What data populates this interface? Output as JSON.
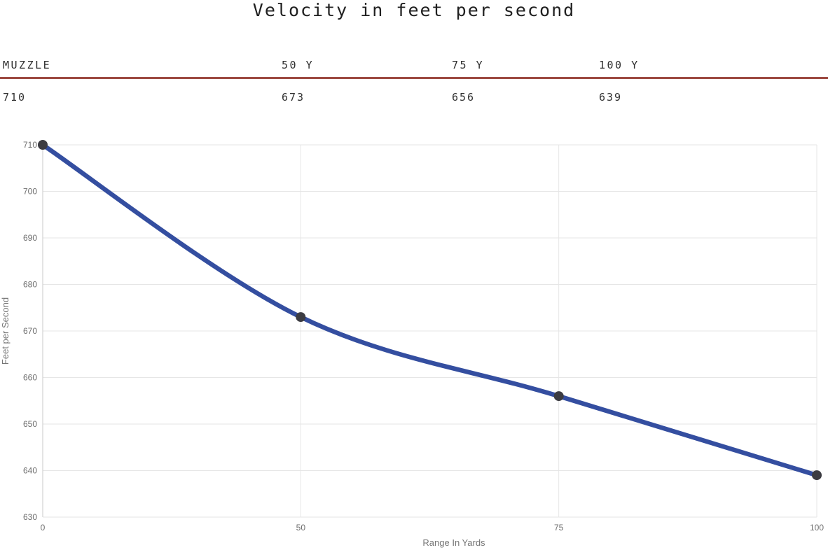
{
  "title": "Velocity in feet per second",
  "table": {
    "headers": [
      "MUZZLE",
      "50 Y",
      "75 Y",
      "100 Y"
    ],
    "values": [
      "710",
      "673",
      "656",
      "639"
    ],
    "divider_color": "#9d4b42"
  },
  "chart_data": {
    "type": "line",
    "categories": [
      0,
      50,
      75,
      100
    ],
    "x_tick_labels": [
      "0",
      "50",
      "75",
      "100"
    ],
    "values": [
      710,
      673,
      656,
      639
    ],
    "series_name": "Velocity",
    "xlabel": "Range In Yards",
    "ylabel": "Feet per Second",
    "ylim": [
      630,
      710
    ],
    "yticks": [
      630,
      640,
      650,
      660,
      670,
      680,
      690,
      700,
      710
    ],
    "grid": true,
    "legend": "none",
    "curve": "smooth",
    "line_color": "#344ea0",
    "marker_color": "#3c3c42",
    "grid_color": "#e6e6e6",
    "axis_line_color": "#c9c9c9",
    "tick_label_color": "#6e6e6e",
    "axis_title_color": "#757575"
  }
}
